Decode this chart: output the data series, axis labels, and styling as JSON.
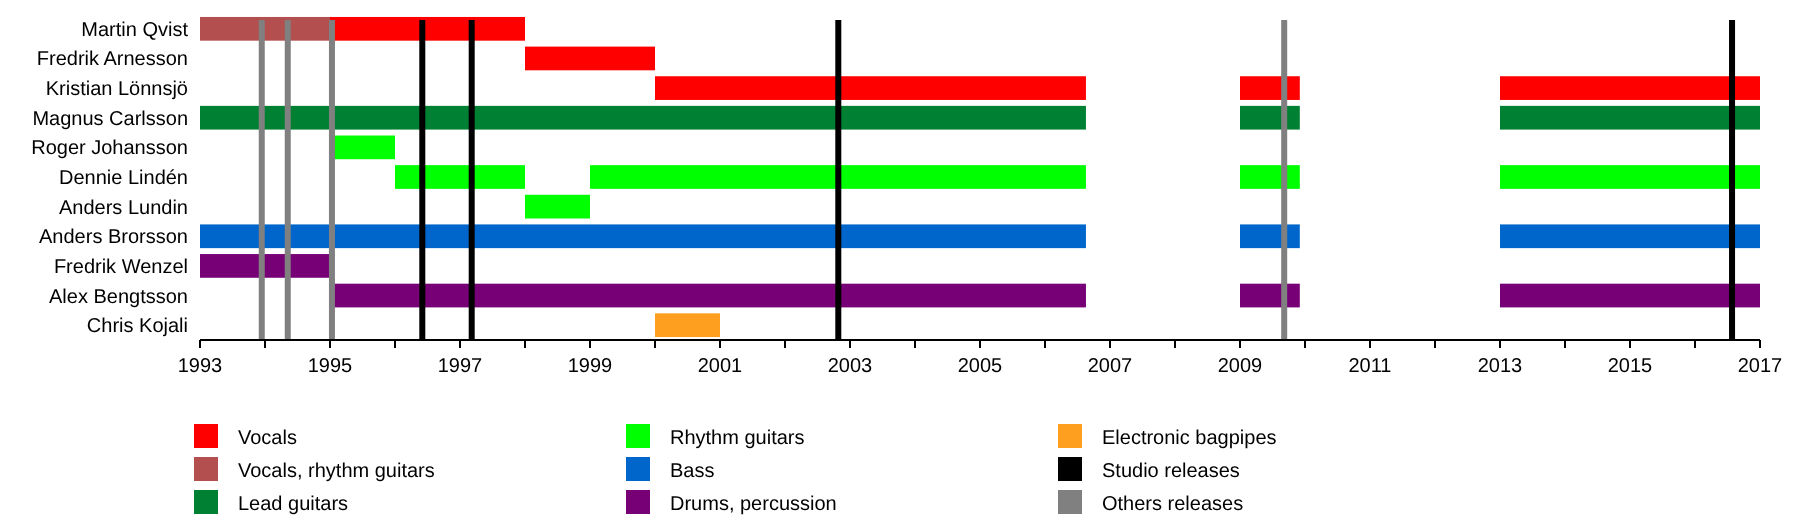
{
  "chart_data": {
    "type": "bar",
    "orientation": "horizontal",
    "categories": [
      "Martin Qvist",
      "Fredrik Arnesson",
      "Kristian Lönnsjö",
      "Magnus Carlsson",
      "Roger Johansson",
      "Dennie Lindén",
      "Anders Lundin",
      "Anders Brorsson",
      "Fredrik Wenzel",
      "Alex Bengtsson",
      "Chris Kojali"
    ],
    "series": [
      {
        "name": "Vocals",
        "color": "#ff0000",
        "values": [
          3,
          2,
          6.63,
          null,
          null,
          null,
          null,
          null,
          null,
          null,
          null
        ],
        "base": [
          1995,
          1998,
          2000,
          null,
          null,
          null,
          null,
          null,
          null,
          null,
          null
        ]
      },
      {
        "color": "#ff0000",
        "values": [
          null,
          null,
          0.92,
          null,
          null,
          null,
          null,
          null,
          null,
          null,
          null
        ],
        "base": [
          null,
          null,
          2009,
          null,
          null,
          null,
          null,
          null,
          null,
          null,
          null
        ]
      },
      {
        "color": "#ff0000",
        "values": [
          null,
          null,
          4,
          null,
          null,
          null,
          null,
          null,
          null,
          null,
          null
        ],
        "base": [
          null,
          null,
          2013,
          null,
          null,
          null,
          null,
          null,
          null,
          null,
          null
        ]
      },
      {
        "name": "Vocals, rhythm guitars",
        "color": "#b34f4f",
        "values": [
          2,
          null,
          null,
          null,
          null,
          null,
          null,
          null,
          null,
          null,
          null
        ],
        "base": [
          1993,
          null,
          null,
          null,
          null,
          null,
          null,
          null,
          null,
          null,
          null
        ]
      },
      {
        "name": "Lead guitars",
        "color": "#008033",
        "values": [
          null,
          null,
          null,
          13.63,
          null,
          null,
          null,
          null,
          null,
          null,
          null
        ],
        "base": [
          null,
          null,
          null,
          1993,
          null,
          null,
          null,
          null,
          null,
          null,
          null
        ]
      },
      {
        "color": "#008033",
        "values": [
          null,
          null,
          null,
          0.92,
          null,
          null,
          null,
          null,
          null,
          null,
          null
        ],
        "base": [
          null,
          null,
          null,
          2009,
          null,
          null,
          null,
          null,
          null,
          null,
          null
        ]
      },
      {
        "color": "#008033",
        "values": [
          null,
          null,
          null,
          4,
          null,
          null,
          null,
          null,
          null,
          null,
          null
        ],
        "base": [
          null,
          null,
          null,
          2013,
          null,
          null,
          null,
          null,
          null,
          null,
          null
        ]
      },
      {
        "name": "Rhythm guitars",
        "color": "#00ff00",
        "values": [
          null,
          null,
          null,
          null,
          1,
          2,
          1,
          null,
          null,
          null,
          null
        ],
        "base": [
          null,
          null,
          null,
          null,
          1995,
          1996,
          1998,
          null,
          null,
          null,
          null
        ]
      },
      {
        "color": "#00ff00",
        "values": [
          null,
          null,
          null,
          null,
          null,
          7.63,
          null,
          null,
          null,
          null,
          null
        ],
        "base": [
          null,
          null,
          null,
          null,
          null,
          1999,
          null,
          null,
          null,
          null,
          null
        ]
      },
      {
        "color": "#00ff00",
        "values": [
          null,
          null,
          null,
          null,
          null,
          0.92,
          null,
          null,
          null,
          null,
          null
        ],
        "base": [
          null,
          null,
          null,
          null,
          null,
          2009,
          null,
          null,
          null,
          null,
          null
        ]
      },
      {
        "color": "#00ff00",
        "values": [
          null,
          null,
          null,
          null,
          null,
          4,
          null,
          null,
          null,
          null,
          null
        ],
        "base": [
          null,
          null,
          null,
          null,
          null,
          2013,
          null,
          null,
          null,
          null,
          null
        ]
      },
      {
        "name": "Bass",
        "color": "#0066cc",
        "values": [
          null,
          null,
          null,
          null,
          null,
          null,
          null,
          13.63,
          null,
          null,
          null
        ],
        "base": [
          null,
          null,
          null,
          null,
          null,
          null,
          null,
          1993,
          null,
          null,
          null
        ]
      },
      {
        "color": "#0066cc",
        "values": [
          null,
          null,
          null,
          null,
          null,
          null,
          null,
          0.92,
          null,
          null,
          null
        ],
        "base": [
          null,
          null,
          null,
          null,
          null,
          null,
          null,
          2009,
          null,
          null,
          null
        ]
      },
      {
        "color": "#0066cc",
        "values": [
          null,
          null,
          null,
          null,
          null,
          null,
          null,
          4,
          null,
          null,
          null
        ],
        "base": [
          null,
          null,
          null,
          null,
          null,
          null,
          null,
          2013,
          null,
          null,
          null
        ]
      },
      {
        "name": "Drums, percussion",
        "color": "#770077",
        "values": [
          null,
          null,
          null,
          null,
          null,
          null,
          null,
          null,
          2,
          11.63,
          null
        ],
        "base": [
          null,
          null,
          null,
          null,
          null,
          null,
          null,
          null,
          1993,
          1995,
          null
        ]
      },
      {
        "color": "#770077",
        "values": [
          null,
          null,
          null,
          null,
          null,
          null,
          null,
          null,
          null,
          0.92,
          null
        ],
        "base": [
          null,
          null,
          null,
          null,
          null,
          null,
          null,
          null,
          null,
          2009,
          null
        ]
      },
      {
        "color": "#770077",
        "values": [
          null,
          null,
          null,
          null,
          null,
          null,
          null,
          null,
          null,
          4,
          null
        ],
        "base": [
          null,
          null,
          null,
          null,
          null,
          null,
          null,
          null,
          null,
          2013,
          null
        ]
      },
      {
        "name": "Electronic bagpipes",
        "color": "#ff9f1f",
        "values": [
          null,
          null,
          null,
          null,
          null,
          null,
          null,
          null,
          null,
          null,
          1
        ],
        "base": [
          null,
          null,
          null,
          null,
          null,
          null,
          null,
          null,
          null,
          null,
          2000
        ]
      }
    ],
    "ref_lines": [
      {
        "axis": "x",
        "value": 1996.42,
        "label": "Studio releases",
        "color": "#000000"
      },
      {
        "axis": "x",
        "value": 1997.18,
        "color": "#000000"
      },
      {
        "axis": "x",
        "value": 2002.82,
        "color": "#000000"
      },
      {
        "axis": "x",
        "value": 2016.57,
        "color": "#000000"
      },
      {
        "axis": "x",
        "value": 1993.95,
        "label": "Others releases",
        "color": "#808080"
      },
      {
        "axis": "x",
        "value": 1994.35,
        "color": "#808080"
      },
      {
        "axis": "x",
        "value": 1995.03,
        "color": "#808080"
      },
      {
        "axis": "x",
        "value": 2009.68,
        "color": "#808080"
      }
    ],
    "xlim": [
      1993,
      2017
    ],
    "xticks": [
      1993,
      {
        "value": 1994,
        "label": null
      },
      1995,
      {
        "value": 1996,
        "label": null
      },
      1997,
      {
        "value": 1998,
        "label": null
      },
      1999,
      {
        "value": 2000,
        "label": null
      },
      2001,
      {
        "value": 2002,
        "label": null
      },
      2003,
      {
        "value": 2004,
        "label": null
      },
      2005,
      {
        "value": 2006,
        "label": null
      },
      2007,
      {
        "value": 2008,
        "label": null
      },
      2009,
      {
        "value": 2010,
        "label": null
      },
      2011,
      {
        "value": 2012,
        "label": null
      },
      2013,
      {
        "value": 2014,
        "label": null
      },
      2015,
      {
        "value": 2016,
        "label": null
      },
      2017
    ],
    "grid": false,
    "legend": "bottom"
  }
}
